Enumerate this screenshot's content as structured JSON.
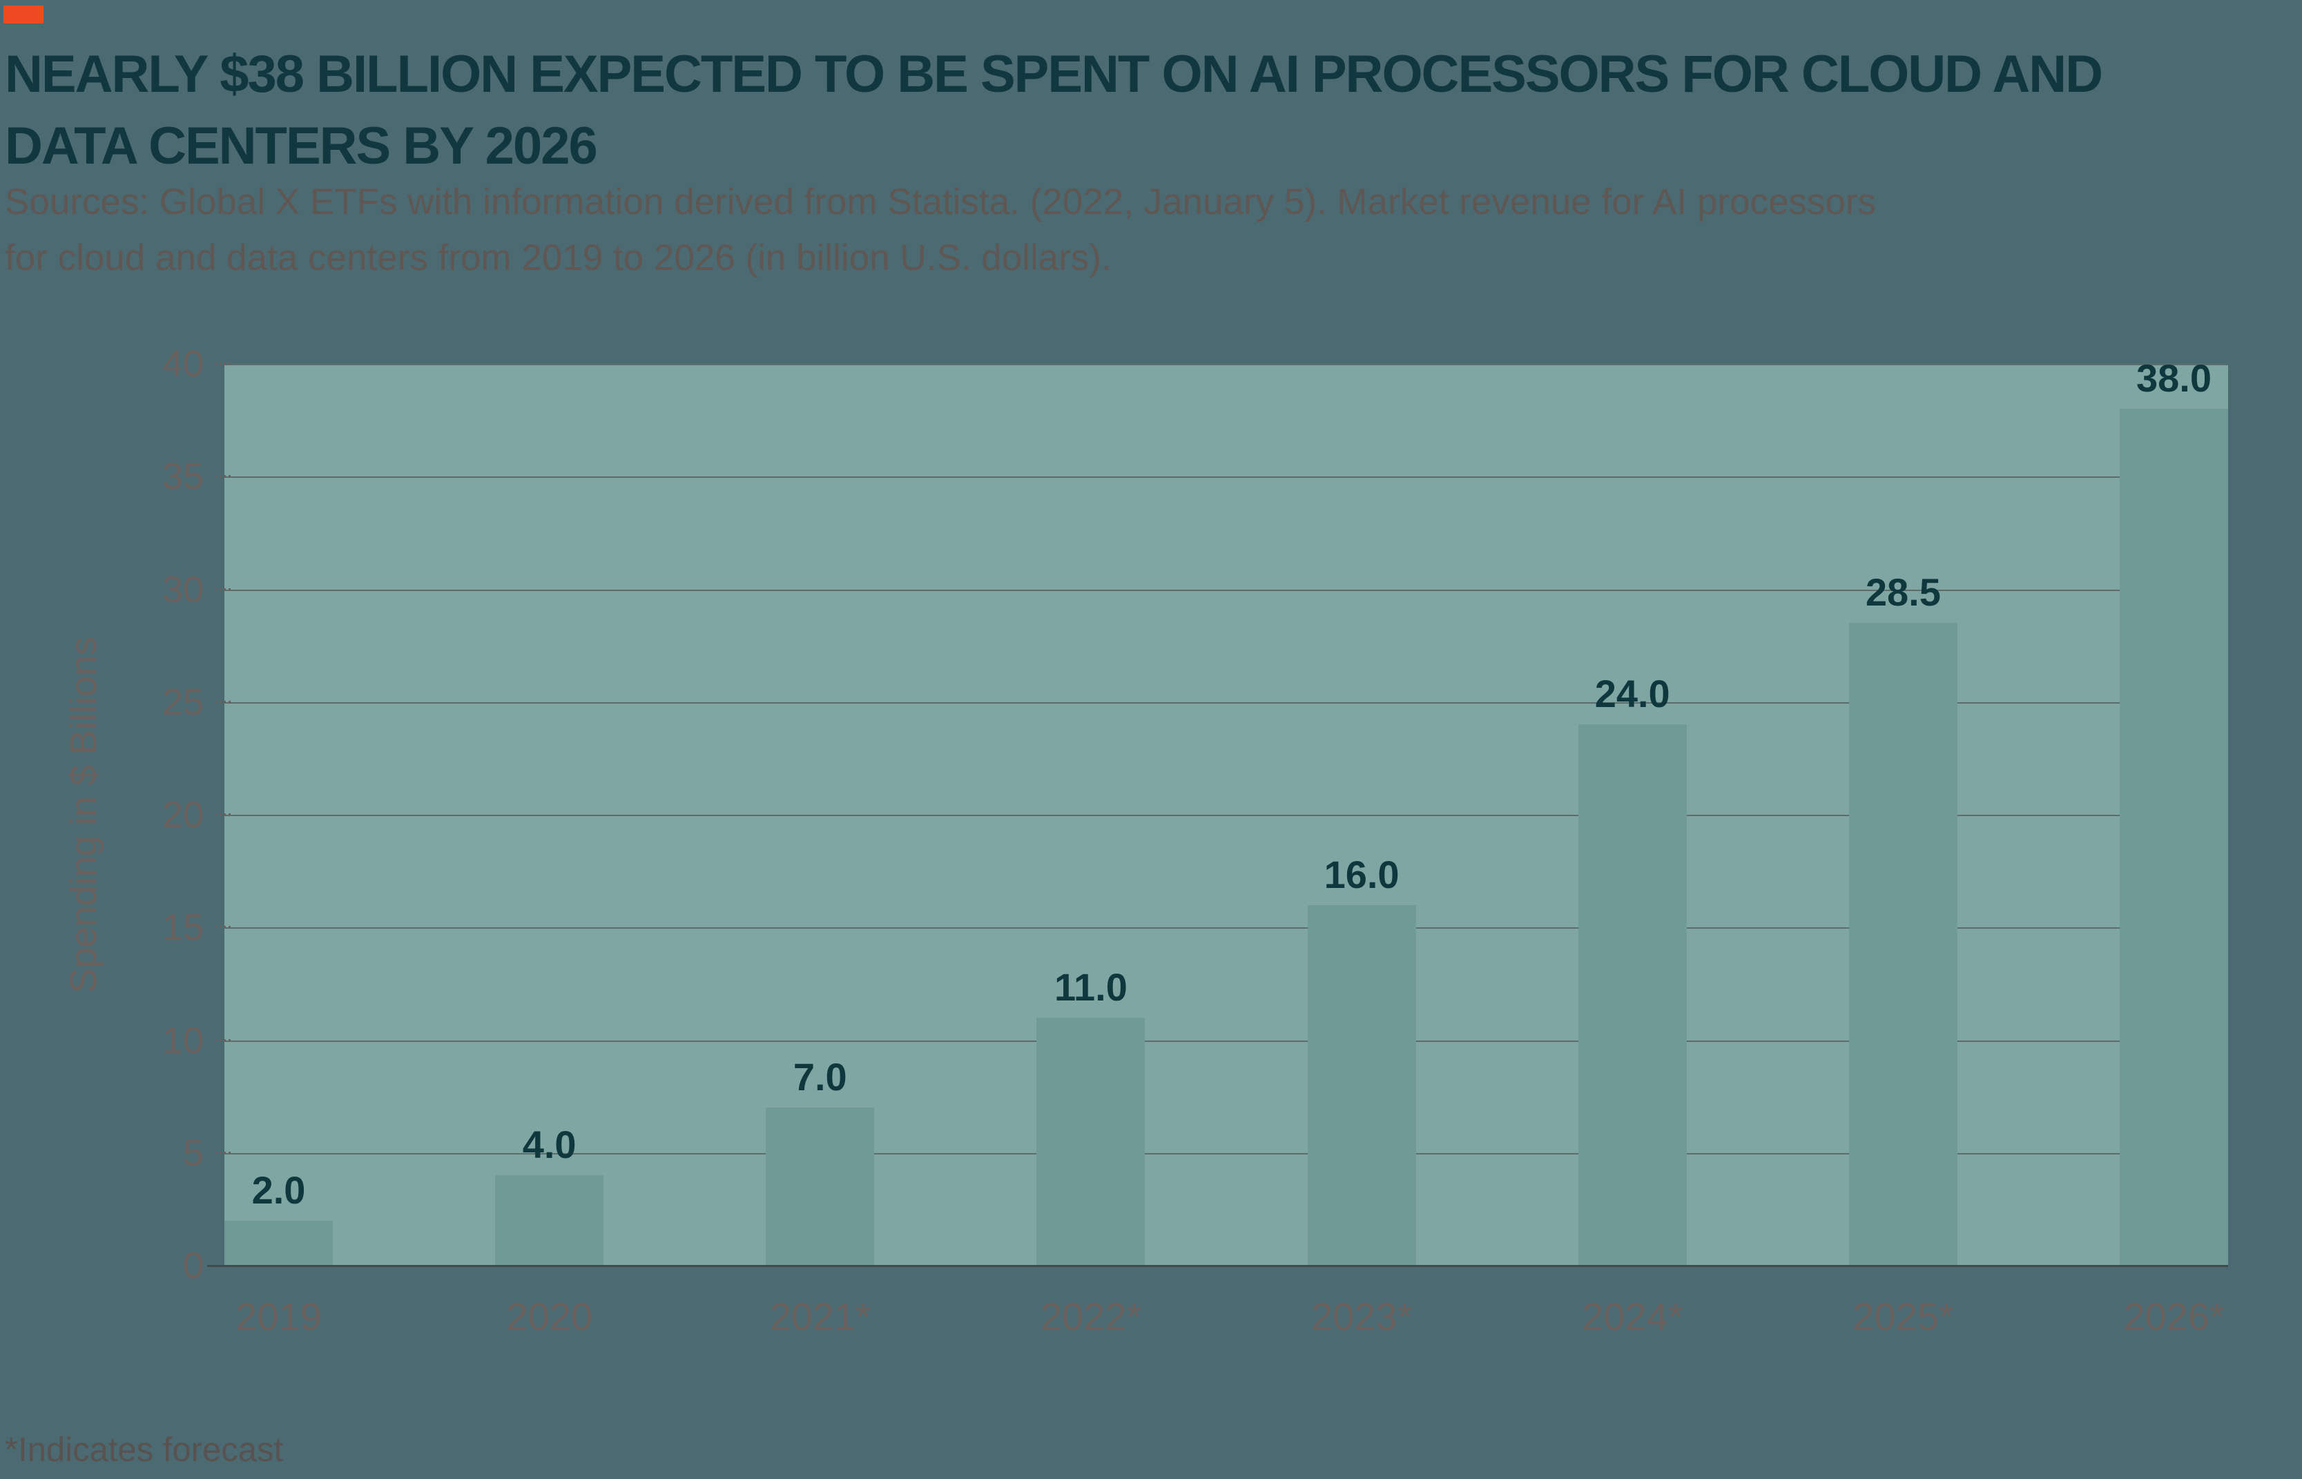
{
  "header": {
    "title_lines": [
      "NEARLY $38 BILLION EXPECTED TO BE SPENT ON AI PROCESSORS FOR CLOUD AND",
      "DATA CENTERS BY 2026"
    ],
    "source_lines": [
      "Sources: Global X ETFs with information derived from Statista. (2022, January 5). Market revenue for AI processors",
      "for cloud and data centers from 2019 to 2026 (in billion U.S. dollars)."
    ]
  },
  "footer": {
    "note": "*Indicates forecast"
  },
  "chart_data": {
    "type": "bar",
    "title": "Nearly $38 billion expected to be spent on AI processors for cloud and data centers by 2026",
    "categories": [
      "2019",
      "2020",
      "2021*",
      "2022*",
      "2023*",
      "2024*",
      "2025*",
      "2026*"
    ],
    "values": [
      2.0,
      4.0,
      7.0,
      11.0,
      16.0,
      24.0,
      28.5,
      38.0
    ],
    "value_labels": [
      "2.0",
      "4.0",
      "7.0",
      "11.0",
      "16.0",
      "24.0",
      "28.5",
      "38.0"
    ],
    "xlabel": "",
    "ylabel": "Spending in $ Billions",
    "ylim": [
      0,
      40
    ],
    "yticks": [
      0,
      5,
      10,
      15,
      20,
      25,
      30,
      35,
      40
    ],
    "ytick_labels": [
      "0",
      "5",
      "10",
      "15",
      "20",
      "25",
      "30",
      "35",
      "40"
    ],
    "grid": true,
    "legend_position": "none",
    "annotation": "*Indicates forecast"
  },
  "colors": {
    "page_background": "#4C6A72",
    "plot_background": "#80A6A3",
    "bar": "#6F9A98",
    "gridline": "#5C6C6B",
    "axis_line": "#45494A",
    "title_text": "#10383E",
    "value_label_text": "#0F383E",
    "axis_label_text": "#6A615E",
    "source_text": "#5F5754",
    "footnote_text": "#585250",
    "accent": "#EE4B23"
  }
}
